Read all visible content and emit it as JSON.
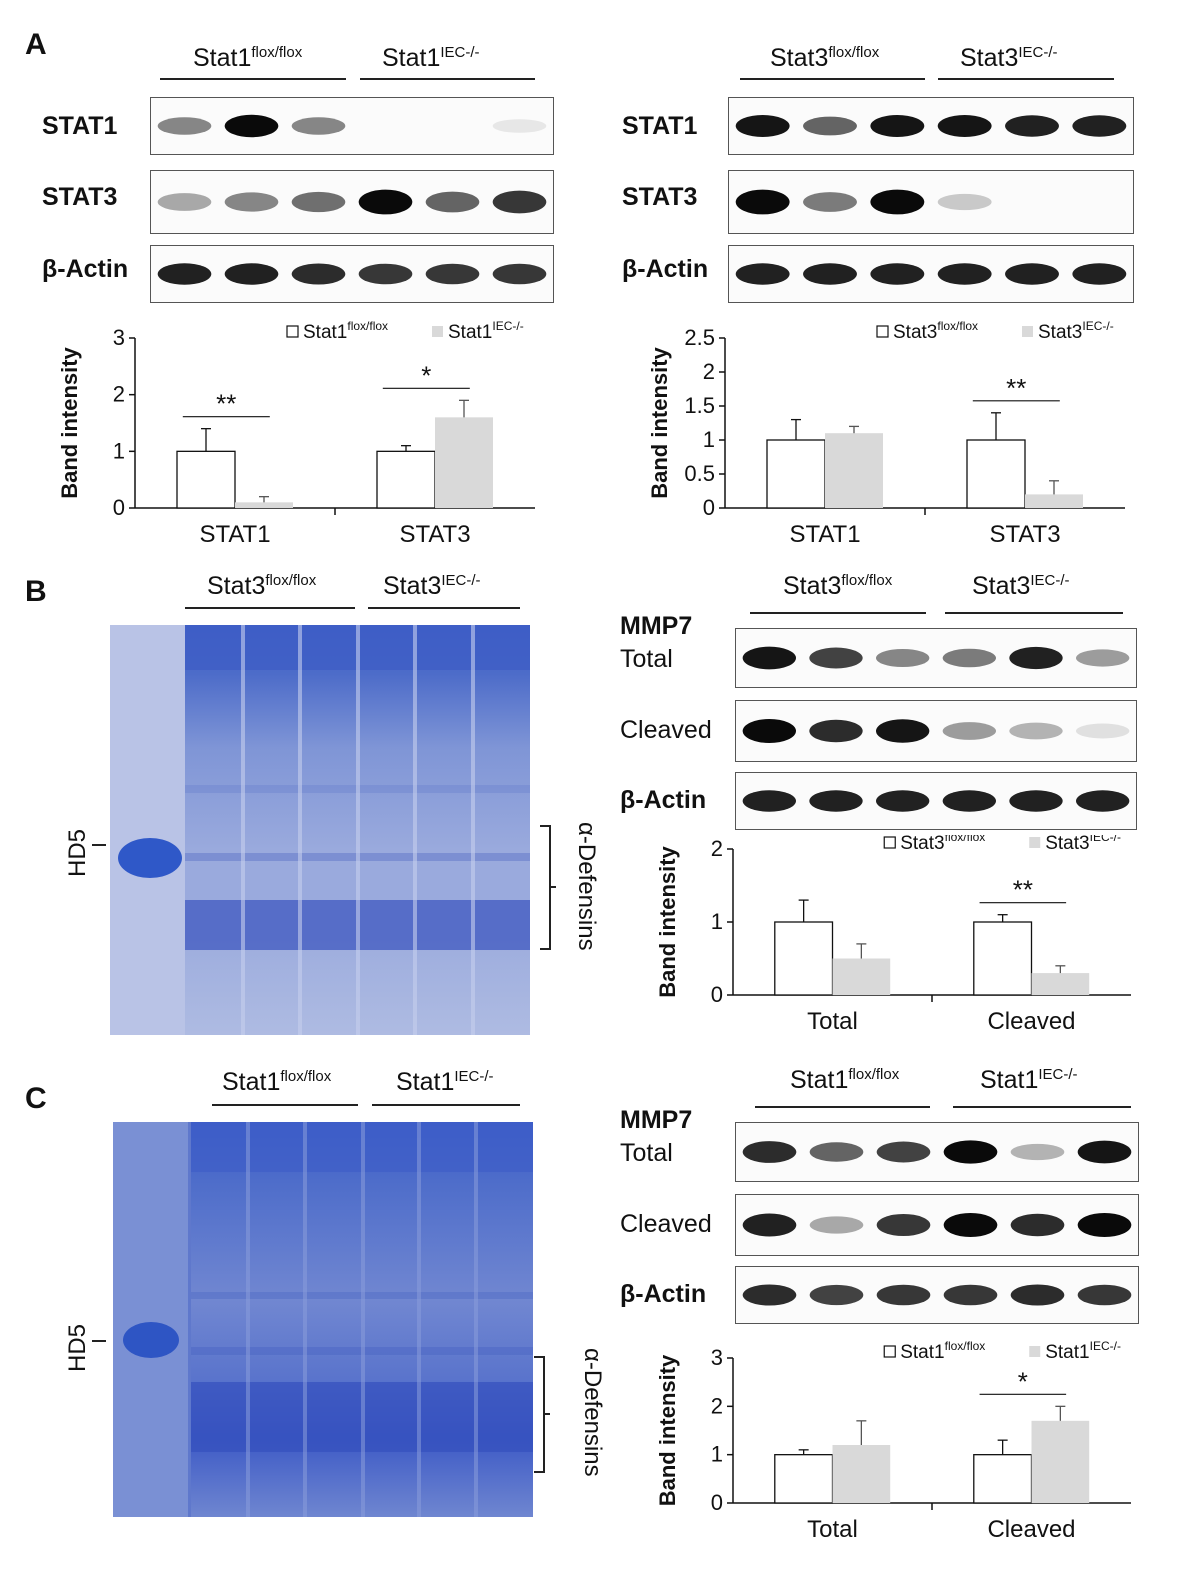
{
  "panels": {
    "A": "A",
    "B": "B",
    "C": "C"
  },
  "groups": {
    "stat1_flox": {
      "base": "Stat1",
      "sup": "flox/flox"
    },
    "stat1_iec": {
      "base": "Stat1",
      "sup": "IEC-/-"
    },
    "stat3_flox": {
      "base": "Stat3",
      "sup": "flox/flox"
    },
    "stat3_iec": {
      "base": "Stat3",
      "sup": "IEC-/-"
    }
  },
  "blot_labels": {
    "stat1": "STAT1",
    "stat3": "STAT3",
    "actin": "β-Actin",
    "mmp7": "MMP7",
    "total": "Total",
    "cleaved": "Cleaved"
  },
  "gel_labels": {
    "hd5": "HD5",
    "defensins": "α-Defensins"
  },
  "band_intensity": {
    "A_left": [
      0.45,
      1.0,
      0.45,
      0,
      0,
      0.02
    ],
    "A_left_stat3": [
      0.3,
      0.45,
      0.55,
      1.0,
      0.6,
      0.8
    ],
    "A_left_actin": [
      0.9,
      0.9,
      0.85,
      0.8,
      0.8,
      0.8
    ],
    "A_right_stat1": [
      0.95,
      0.6,
      0.95,
      0.95,
      0.9,
      0.9
    ],
    "A_right_stat3": [
      1.0,
      0.5,
      1.0,
      0.15,
      0,
      0
    ],
    "A_right_actin": [
      0.9,
      0.9,
      0.9,
      0.9,
      0.9,
      0.9
    ],
    "B_total": [
      0.95,
      0.75,
      0.45,
      0.5,
      0.9,
      0.35
    ],
    "B_cleaved": [
      1.0,
      0.85,
      0.95,
      0.35,
      0.25,
      0.05
    ],
    "B_actin": [
      0.9,
      0.9,
      0.9,
      0.9,
      0.9,
      0.9
    ],
    "C_total": [
      0.85,
      0.6,
      0.75,
      1.0,
      0.25,
      0.95
    ],
    "C_cleaved": [
      0.9,
      0.3,
      0.8,
      1.0,
      0.85,
      1.0
    ],
    "C_actin": [
      0.85,
      0.75,
      0.8,
      0.8,
      0.85,
      0.8
    ]
  },
  "chart_data": [
    {
      "type": "bar",
      "panel": "A-left",
      "ylabel": "Band intensity",
      "categories": [
        "STAT1",
        "STAT3"
      ],
      "series": [
        {
          "name": "Stat1 flox/flox",
          "values": [
            1.0,
            1.0
          ],
          "errors": [
            0.4,
            0.1
          ],
          "color": "#ffffff"
        },
        {
          "name": "Stat1 IEC-/-",
          "values": [
            0.1,
            1.6
          ],
          "errors": [
            0.1,
            0.3
          ],
          "color": "#d9d9d9"
        }
      ],
      "ylim": [
        0,
        3
      ],
      "yticks": [
        "0",
        "1",
        "2",
        "3"
      ],
      "significance": [
        "**",
        "*"
      ]
    },
    {
      "type": "bar",
      "panel": "A-right",
      "ylabel": "Band intensity",
      "categories": [
        "STAT1",
        "STAT3"
      ],
      "series": [
        {
          "name": "Stat3 flox/flox",
          "values": [
            1.0,
            1.0
          ],
          "errors": [
            0.3,
            0.4
          ],
          "color": "#ffffff"
        },
        {
          "name": "Stat3 IEC-/-",
          "values": [
            1.1,
            0.2
          ],
          "errors": [
            0.1,
            0.2
          ],
          "color": "#d9d9d9"
        }
      ],
      "ylim": [
        0,
        2.5
      ],
      "yticks": [
        "0",
        "0.5",
        "1",
        "1.5",
        "2",
        "2.5"
      ],
      "significance": [
        "",
        "**"
      ]
    },
    {
      "type": "bar",
      "panel": "B",
      "ylabel": "Band intensity",
      "categories": [
        "Total",
        "Cleaved"
      ],
      "series": [
        {
          "name": "Stat3 flox/flox",
          "values": [
            1.0,
            1.0
          ],
          "errors": [
            0.3,
            0.1
          ],
          "color": "#ffffff"
        },
        {
          "name": "Stat3 IEC-/-",
          "values": [
            0.5,
            0.3
          ],
          "errors": [
            0.2,
            0.1
          ],
          "color": "#d9d9d9"
        }
      ],
      "ylim": [
        0,
        2
      ],
      "yticks": [
        "0",
        "1",
        "2"
      ],
      "significance": [
        "",
        "**"
      ]
    },
    {
      "type": "bar",
      "panel": "C",
      "ylabel": "Band intensity",
      "categories": [
        "Total",
        "Cleaved"
      ],
      "series": [
        {
          "name": "Stat1 flox/flox",
          "values": [
            1.0,
            1.0
          ],
          "errors": [
            0.1,
            0.3
          ],
          "color": "#ffffff"
        },
        {
          "name": "Stat1 IEC-/-",
          "values": [
            1.2,
            1.7
          ],
          "errors": [
            0.5,
            0.3
          ],
          "color": "#d9d9d9"
        }
      ],
      "ylim": [
        0,
        3
      ],
      "yticks": [
        "0",
        "1",
        "2",
        "3"
      ],
      "significance": [
        "",
        "*"
      ]
    }
  ]
}
